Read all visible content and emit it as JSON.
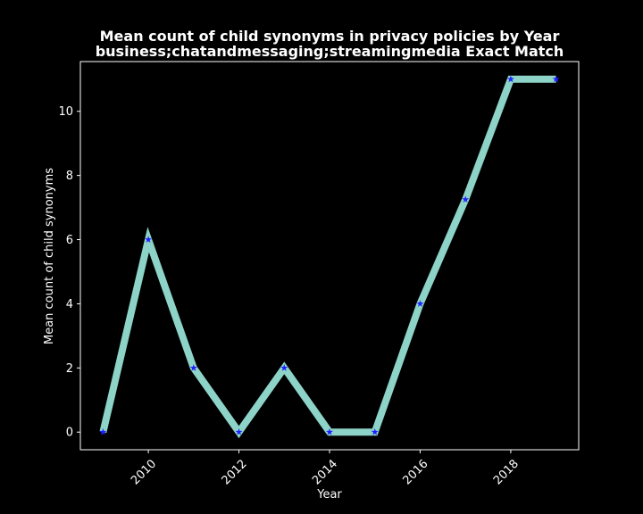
{
  "chart_data": {
    "type": "line",
    "title": "Mean count of child synonyms in privacy policies by Year",
    "subtitle": "business;chatandmessaging;streamingmedia Exact Match",
    "xlabel": "Year",
    "ylabel": "Mean count of child synonyms",
    "xlim": [
      2008.5,
      2019.5
    ],
    "ylim": [
      -0.55,
      11.55
    ],
    "xticks": [
      2010,
      2012,
      2014,
      2016,
      2018
    ],
    "yticks": [
      0,
      2,
      4,
      6,
      8,
      10
    ],
    "grid": false,
    "series": [
      {
        "x": [
          2009,
          2010,
          2011,
          2012,
          2013,
          2014,
          2015,
          2016,
          2017,
          2018,
          2019
        ],
        "y": [
          0,
          6,
          2,
          0,
          2,
          0,
          0,
          4,
          7.25,
          11,
          11
        ]
      }
    ],
    "colors": {
      "background": "#000000",
      "axes": "#ffffff",
      "line": "#8dd3c7",
      "marker": "#1f1fff"
    },
    "marker": "star"
  }
}
